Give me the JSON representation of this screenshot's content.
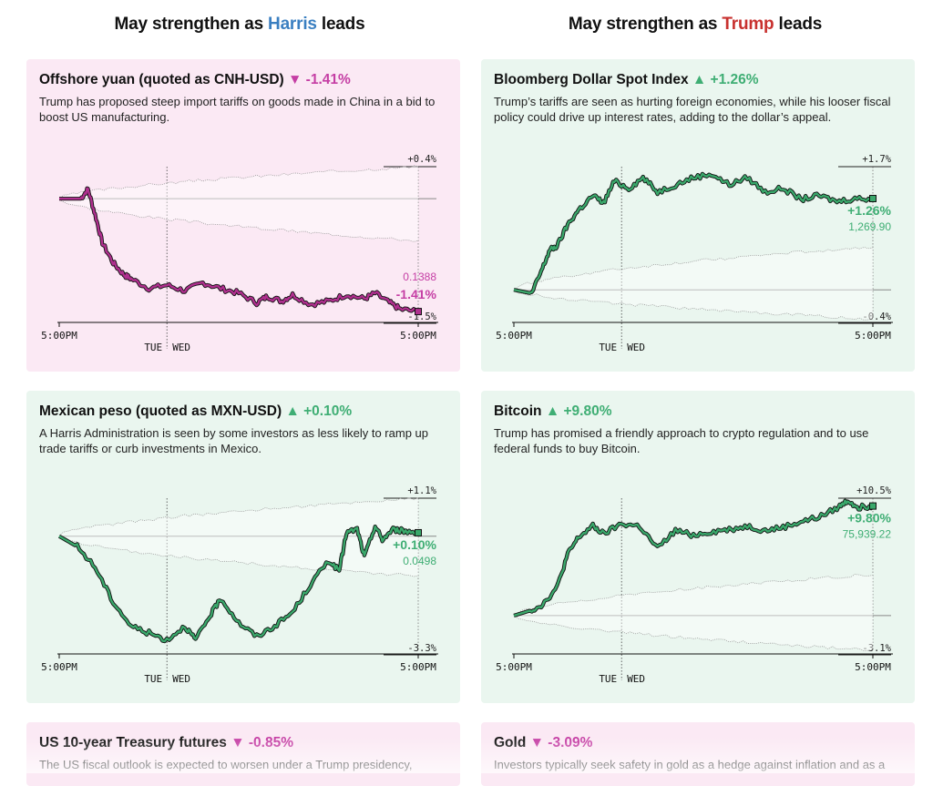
{
  "headers": {
    "left": {
      "prefix": "May strengthen as ",
      "name": "Harris",
      "suffix": " leads"
    },
    "right": {
      "prefix": "May strengthen as ",
      "name": "Trump",
      "suffix": " leads"
    }
  },
  "colors": {
    "harris_blue": "#3a7fc1",
    "trump_red": "#c8312f",
    "pink_line": "#b0308f",
    "green_line": "#3aa86b",
    "pink_bg": "#fbe9f4",
    "green_bg": "#eaf6ef"
  },
  "panels": [
    {
      "id": "cnh",
      "title": "Offshore yuan (quoted as CNH-USD)",
      "arrow": "▼",
      "change": "-1.41%",
      "tone": "pink",
      "description": "Trump has proposed steep import tariffs on goods made in China in a bid to boost US manufacturing.",
      "end_change": "-1.41%",
      "end_value": "0.1388",
      "range_high": "+0.4%",
      "range_low": "-1.5%",
      "x_ticks": [
        "5:00PM",
        "TUE",
        "WED",
        "5:00PM"
      ]
    },
    {
      "id": "dxy",
      "title": "Bloomberg Dollar Spot Index",
      "arrow": "▲",
      "change": "+1.26%",
      "tone": "green",
      "description": "Trump’s tariffs are seen as hurting foreign economies, while his looser fiscal policy could drive up interest rates, adding to the dollar’s appeal.",
      "end_change": "+1.26%",
      "end_value": "1,269.90",
      "range_high": "+1.7%",
      "range_low": "-0.4%",
      "x_ticks": [
        "5:00PM",
        "TUE",
        "WED",
        "5:00PM"
      ]
    },
    {
      "id": "mxn",
      "title": "Mexican peso (quoted as MXN-USD)",
      "arrow": "▲",
      "change": "+0.10%",
      "tone": "green",
      "description": "A Harris Administration is seen by some investors as less likely to ramp up trade tariffs or curb investments in Mexico.",
      "end_change": "+0.10%",
      "end_value": "0.0498",
      "range_high": "+1.1%",
      "range_low": "-3.3%",
      "x_ticks": [
        "5:00PM",
        "TUE",
        "WED",
        "5:00PM"
      ]
    },
    {
      "id": "btc",
      "title": "Bitcoin",
      "arrow": "▲",
      "change": "+9.80%",
      "tone": "green",
      "description": "Trump has promised a friendly approach to crypto regulation and to use federal funds to buy Bitcoin.",
      "end_change": "+9.80%",
      "end_value": "75,939.22",
      "range_high": "+10.5%",
      "range_low": "-3.1%",
      "x_ticks": [
        "5:00PM",
        "TUE",
        "WED",
        "5:00PM"
      ]
    },
    {
      "id": "ust",
      "title": "US 10-year Treasury futures",
      "arrow": "▼",
      "change": "-0.85%",
      "tone": "pink",
      "description": "The US fiscal outlook is expected to worsen under a Trump presidency,"
    },
    {
      "id": "gold",
      "title": "Gold",
      "arrow": "▼",
      "change": "-3.09%",
      "tone": "pink",
      "description": "Investors typically seek safety in gold as a hedge against inflation and as a"
    }
  ],
  "chart_data": [
    {
      "type": "line",
      "title": "Offshore yuan (quoted as CNH-USD)",
      "ylabel": "",
      "xlabel": "",
      "x_ticks": [
        "5:00PM",
        "TUE",
        "WED",
        "5:00PM"
      ],
      "ylim": [
        -1.5,
        0.4
      ],
      "x": [
        0,
        0.06,
        0.08,
        0.1,
        0.12,
        0.15,
        0.18,
        0.2,
        0.25,
        0.3,
        0.35,
        0.4,
        0.45,
        0.5,
        0.55,
        0.58,
        0.62,
        0.65,
        0.7,
        0.75,
        0.8,
        0.85,
        0.88,
        0.92,
        0.95,
        1.0
      ],
      "series": [
        {
          "name": "",
          "values": [
            0,
            0,
            0.12,
            -0.2,
            -0.55,
            -0.8,
            -0.95,
            -1.0,
            -1.12,
            -1.08,
            -1.15,
            -1.05,
            -1.12,
            -1.18,
            -1.3,
            -1.22,
            -1.28,
            -1.2,
            -1.32,
            -1.28,
            -1.2,
            -1.25,
            -1.18,
            -1.3,
            -1.38,
            -1.41
          ]
        }
      ]
    },
    {
      "type": "line",
      "title": "Bloomberg Dollar Spot Index",
      "ylabel": "",
      "xlabel": "",
      "x_ticks": [
        "5:00PM",
        "TUE",
        "WED",
        "5:00PM"
      ],
      "ylim": [
        -0.4,
        1.7
      ],
      "x": [
        0,
        0.05,
        0.08,
        0.1,
        0.12,
        0.15,
        0.18,
        0.22,
        0.25,
        0.28,
        0.32,
        0.36,
        0.4,
        0.45,
        0.5,
        0.55,
        0.6,
        0.65,
        0.7,
        0.75,
        0.8,
        0.85,
        0.9,
        0.95,
        1.0
      ],
      "series": [
        {
          "name": "",
          "values": [
            0,
            -0.05,
            0.3,
            0.55,
            0.6,
            0.9,
            1.1,
            1.3,
            1.2,
            1.5,
            1.4,
            1.55,
            1.35,
            1.45,
            1.55,
            1.6,
            1.45,
            1.55,
            1.35,
            1.4,
            1.25,
            1.3,
            1.22,
            1.26,
            1.26
          ]
        }
      ]
    },
    {
      "type": "line",
      "title": "Mexican peso (quoted as MXN-USD)",
      "ylabel": "",
      "xlabel": "",
      "x_ticks": [
        "5:00PM",
        "TUE",
        "WED",
        "5:00PM"
      ],
      "ylim": [
        -3.3,
        1.1
      ],
      "x": [
        0,
        0.05,
        0.1,
        0.15,
        0.2,
        0.25,
        0.3,
        0.35,
        0.38,
        0.42,
        0.45,
        0.5,
        0.55,
        0.6,
        0.65,
        0.7,
        0.75,
        0.78,
        0.8,
        0.83,
        0.85,
        0.88,
        0.9,
        0.93,
        0.96,
        1.0
      ],
      "series": [
        {
          "name": "",
          "values": [
            0,
            -0.3,
            -0.9,
            -1.9,
            -2.6,
            -2.8,
            -3.0,
            -2.6,
            -3.0,
            -2.3,
            -1.8,
            -2.5,
            -2.9,
            -2.6,
            -2.2,
            -1.4,
            -0.7,
            -1.0,
            0.1,
            0.2,
            -0.6,
            0.3,
            -0.1,
            0.2,
            0.15,
            0.1
          ]
        }
      ]
    },
    {
      "type": "line",
      "title": "Bitcoin",
      "ylabel": "",
      "xlabel": "",
      "x_ticks": [
        "5:00PM",
        "TUE",
        "WED",
        "5:00PM"
      ],
      "ylim": [
        -3.1,
        10.5
      ],
      "x": [
        0,
        0.05,
        0.08,
        0.12,
        0.15,
        0.18,
        0.22,
        0.25,
        0.3,
        0.35,
        0.4,
        0.45,
        0.5,
        0.55,
        0.6,
        0.65,
        0.7,
        0.75,
        0.8,
        0.85,
        0.9,
        0.93,
        0.96,
        1.0
      ],
      "series": [
        {
          "name": "",
          "values": [
            0,
            0.5,
            1.0,
            2.5,
            5.5,
            7.0,
            8.0,
            7.3,
            8.2,
            8.0,
            6.0,
            7.6,
            7.2,
            7.5,
            7.7,
            8.0,
            7.6,
            7.9,
            8.4,
            8.8,
            9.6,
            10.3,
            9.7,
            9.8
          ]
        }
      ]
    }
  ]
}
